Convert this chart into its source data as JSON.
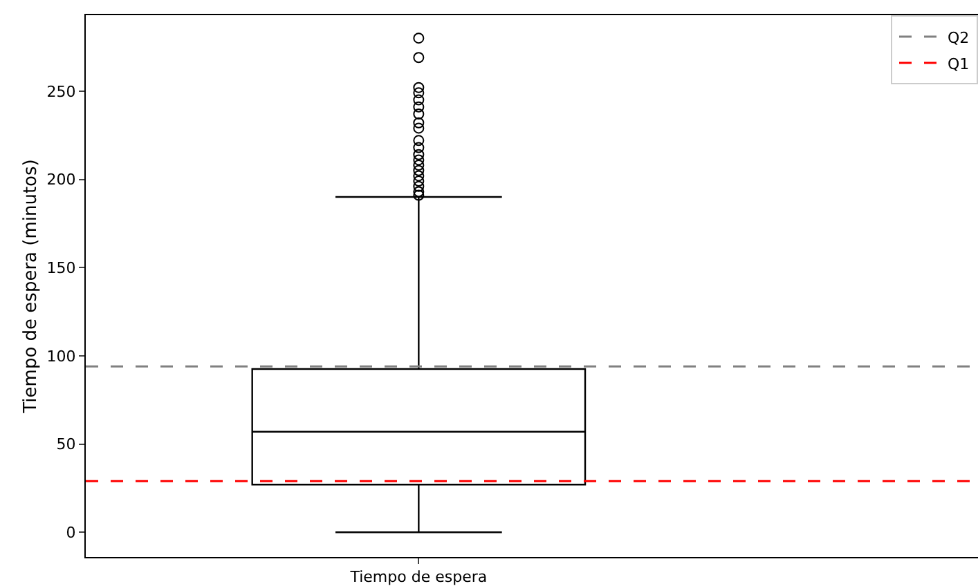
{
  "chart_data": {
    "type": "box",
    "ylabel": "Tiempo de espera (minutos)",
    "categories": [
      "Tiempo de espera"
    ],
    "boxes": [
      {
        "low": 0,
        "q1": 27,
        "median": 57,
        "q3": 92.5,
        "high": 190,
        "outliers": [
          280,
          269,
          252,
          249,
          245,
          241,
          237,
          232,
          229,
          222,
          218,
          214,
          211,
          208,
          205,
          202,
          199,
          196,
          193,
          191
        ]
      }
    ],
    "color": "#000000",
    "ylim": [
      -14,
      293
    ],
    "yticks": [
      0,
      50,
      100,
      150,
      200,
      250
    ],
    "ref_lines": [
      {
        "axis": "y",
        "value": 94,
        "label": "Q2",
        "color": "#808080",
        "line_style": "dashed"
      },
      {
        "axis": "y",
        "value": 29,
        "label": "Q1",
        "color": "#ff0000",
        "line_style": "dashed"
      }
    ],
    "grid": false,
    "legend": "top right",
    "marker": "circle"
  }
}
